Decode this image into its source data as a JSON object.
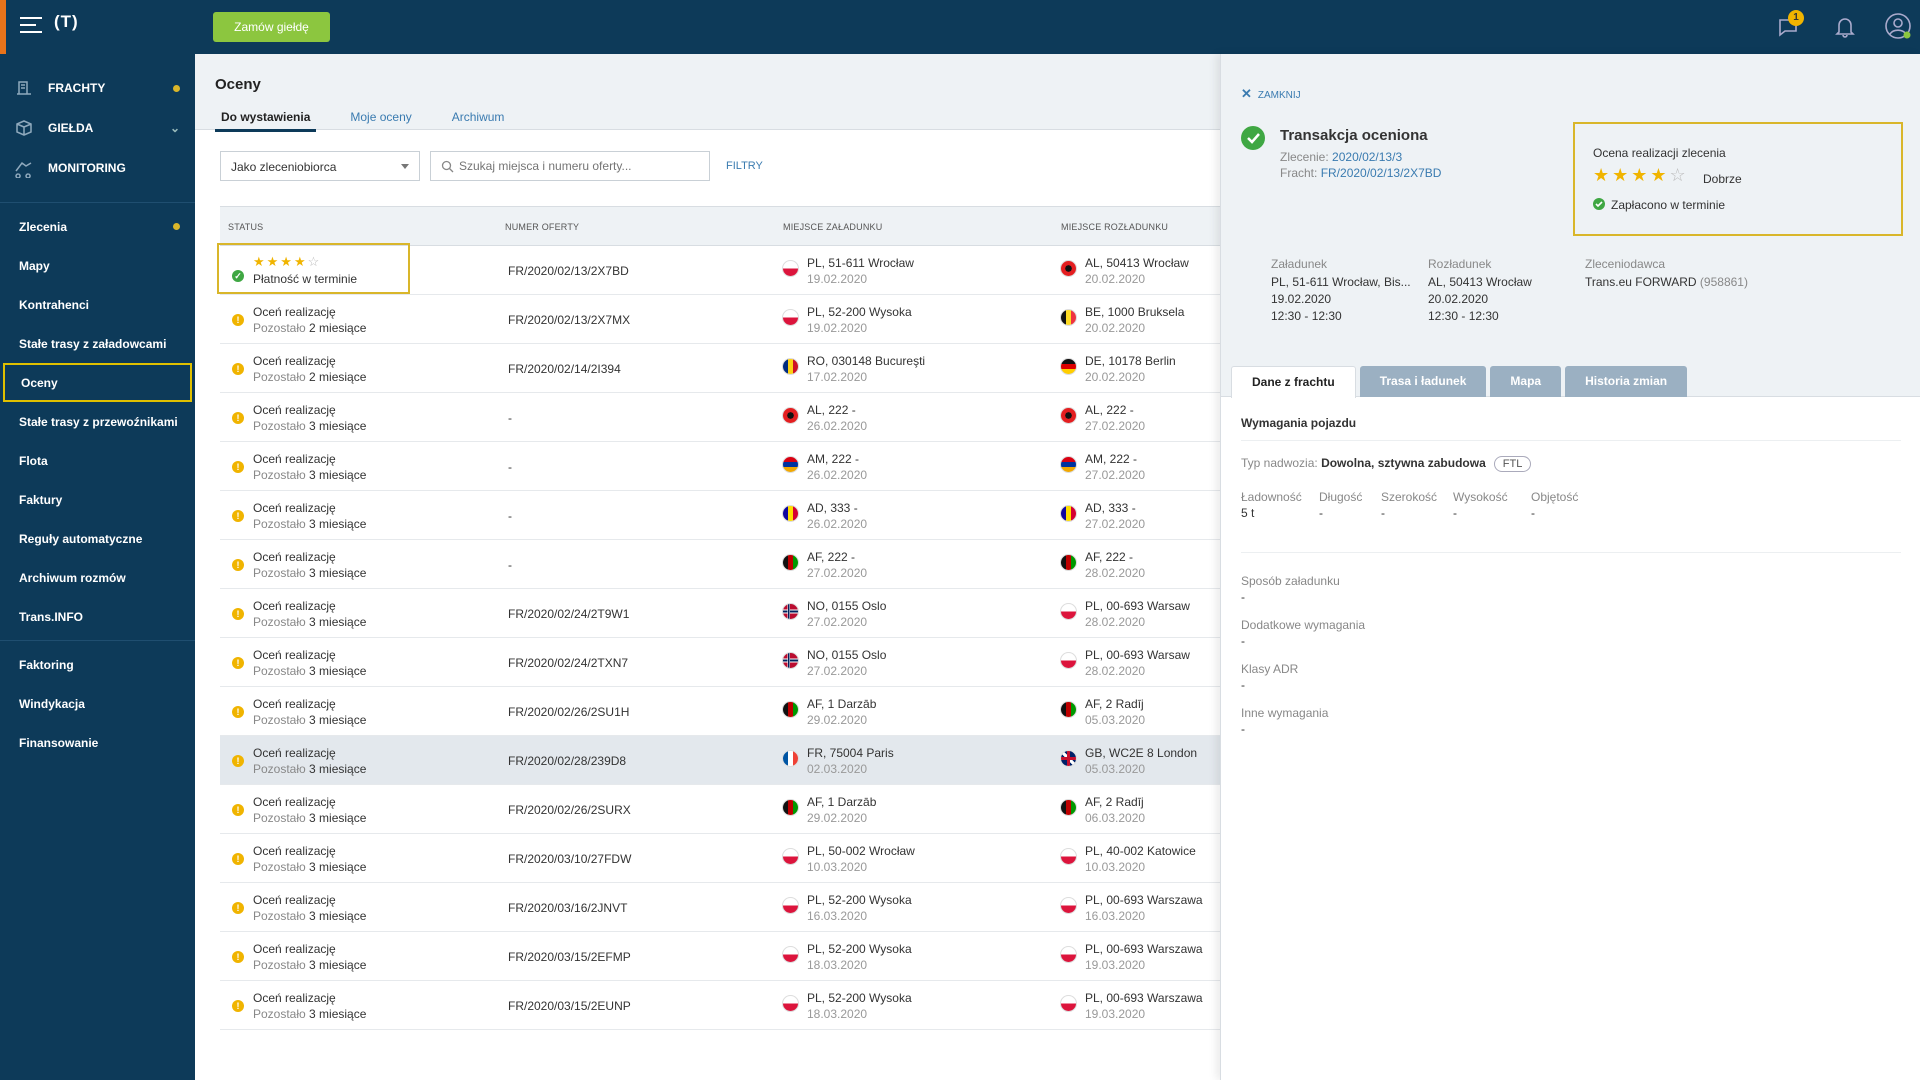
{
  "topbar": {
    "logo": "(T)",
    "order_button": "Zamów giełdę",
    "messages_badge": "1"
  },
  "sidebar": {
    "main_items": [
      {
        "label": "FRACHTY",
        "icon": "freight-icon",
        "dot": true
      },
      {
        "label": "GIEŁDA",
        "icon": "box-icon",
        "chevron": true
      },
      {
        "label": "MONITORING",
        "icon": "truck-icon"
      }
    ],
    "group1": [
      "Zlecenia",
      "Mapy",
      "Kontrahenci",
      "Stałe trasy z załadowcami",
      "Oceny",
      "Stałe trasy z przewoźnikami",
      "Flota",
      "Faktury",
      "Reguły automatyczne",
      "Archiwum rozmów",
      "Trans.INFO"
    ],
    "group2": [
      "Faktoring",
      "Windykacja",
      "Finansowanie"
    ],
    "active": "Oceny"
  },
  "main": {
    "title": "Oceny",
    "tabs": [
      "Do wystawienia",
      "Moje oceny",
      "Archiwum"
    ],
    "select_value": "Jako zleceniobiorca",
    "search_placeholder": "Szukaj miejsca i numeru oferty...",
    "filters_label": "FILTRY",
    "columns": [
      "STATUS",
      "NUMER OFERTY",
      "MIEJSCE ZAŁADUNKU",
      "MIEJSCE ROZŁADUNKU"
    ],
    "first_row": {
      "stars": 4,
      "status": "Płatność w terminie",
      "offer": "FR/2020/02/13/2X7BD",
      "load": "PL, 51-611 Wrocław",
      "load_date": "19.02.2020",
      "load_flag": "PL",
      "unload": "AL, 50413 Wrocław",
      "unload_date": "20.02.2020",
      "unload_flag": "AL"
    },
    "rows": [
      {
        "status": "Oceń realizację",
        "remain_pre": "Pozostało",
        "remain": "2 miesiące",
        "offer": "FR/2020/02/13/2X7MX",
        "load": "PL, 52-200 Wysoka",
        "load_date": "19.02.2020",
        "load_flag": "PL",
        "unload": "BE, 1000 Bruksela",
        "unload_date": "20.02.2020",
        "unload_flag": "BE"
      },
      {
        "status": "Oceń realizację",
        "remain_pre": "Pozostało",
        "remain": "2 miesiące",
        "offer": "FR/2020/02/14/2I394",
        "load": "RO, 030148 Bucureşti",
        "load_date": "17.02.2020",
        "load_flag": "RO",
        "unload": "DE, 10178 Berlin",
        "unload_date": "20.02.2020",
        "unload_flag": "DE"
      },
      {
        "status": "Oceń realizację",
        "remain_pre": "Pozostało",
        "remain": "3 miesiące",
        "offer": "-",
        "load": "AL, 222 -",
        "load_date": "26.02.2020",
        "load_flag": "AL",
        "unload": "AL, 222 -",
        "unload_date": "27.02.2020",
        "unload_flag": "AL"
      },
      {
        "status": "Oceń realizację",
        "remain_pre": "Pozostało",
        "remain": "3 miesiące",
        "offer": "-",
        "load": "AM, 222 -",
        "load_date": "26.02.2020",
        "load_flag": "AM",
        "unload": "AM, 222 -",
        "unload_date": "27.02.2020",
        "unload_flag": "AM"
      },
      {
        "status": "Oceń realizację",
        "remain_pre": "Pozostało",
        "remain": "3 miesiące",
        "offer": "-",
        "load": "AD, 333 -",
        "load_date": "26.02.2020",
        "load_flag": "AD",
        "unload": "AD, 333 -",
        "unload_date": "27.02.2020",
        "unload_flag": "AD"
      },
      {
        "status": "Oceń realizację",
        "remain_pre": "Pozostało",
        "remain": "3 miesiące",
        "offer": "-",
        "load": "AF, 222 -",
        "load_date": "27.02.2020",
        "load_flag": "AF",
        "unload": "AF, 222 -",
        "unload_date": "28.02.2020",
        "unload_flag": "AF"
      },
      {
        "status": "Oceń realizację",
        "remain_pre": "Pozostało",
        "remain": "3 miesiące",
        "offer": "FR/2020/02/24/2T9W1",
        "load": "NO, 0155 Oslo",
        "load_date": "27.02.2020",
        "load_flag": "NO",
        "unload": "PL, 00-693 Warsaw",
        "unload_date": "28.02.2020",
        "unload_flag": "PL"
      },
      {
        "status": "Oceń realizację",
        "remain_pre": "Pozostało",
        "remain": "3 miesiące",
        "offer": "FR/2020/02/24/2TXN7",
        "load": "NO, 0155 Oslo",
        "load_date": "27.02.2020",
        "load_flag": "NO",
        "unload": "PL, 00-693 Warsaw",
        "unload_date": "28.02.2020",
        "unload_flag": "PL"
      },
      {
        "status": "Oceń realizację",
        "remain_pre": "Pozostało",
        "remain": "3 miesiące",
        "offer": "FR/2020/02/26/2SU1H",
        "load": "AF, 1 Darzāb",
        "load_date": "29.02.2020",
        "load_flag": "AF",
        "unload": "AF, 2 Radīj",
        "unload_date": "05.03.2020",
        "unload_flag": "AF"
      },
      {
        "status": "Oceń realizację",
        "remain_pre": "Pozostało",
        "remain": "3 miesiące",
        "offer": "FR/2020/02/28/239D8",
        "load": "FR, 75004 Paris",
        "load_date": "02.03.2020",
        "load_flag": "FR",
        "unload": "GB, WC2E 8 London",
        "unload_date": "05.03.2020",
        "unload_flag": "GB",
        "selected": true
      },
      {
        "status": "Oceń realizację",
        "remain_pre": "Pozostało",
        "remain": "3 miesiące",
        "offer": "FR/2020/02/26/2SURX",
        "load": "AF, 1 Darzāb",
        "load_date": "29.02.2020",
        "load_flag": "AF",
        "unload": "AF, 2 Radīj",
        "unload_date": "06.03.2020",
        "unload_flag": "AF"
      },
      {
        "status": "Oceń realizację",
        "remain_pre": "Pozostało",
        "remain": "3 miesiące",
        "offer": "FR/2020/03/10/27FDW",
        "load": "PL, 50-002 Wrocław",
        "load_date": "10.03.2020",
        "load_flag": "PL",
        "unload": "PL, 40-002 Katowice",
        "unload_date": "10.03.2020",
        "unload_flag": "PL"
      },
      {
        "status": "Oceń realizację",
        "remain_pre": "Pozostało",
        "remain": "3 miesiące",
        "offer": "FR/2020/03/16/2JNVT",
        "load": "PL, 52-200 Wysoka",
        "load_date": "16.03.2020",
        "load_flag": "PL",
        "unload": "PL, 00-693 Warszawa",
        "unload_date": "16.03.2020",
        "unload_flag": "PL"
      },
      {
        "status": "Oceń realizację",
        "remain_pre": "Pozostało",
        "remain": "3 miesiące",
        "offer": "FR/2020/03/15/2EFMP",
        "load": "PL, 52-200 Wysoka",
        "load_date": "18.03.2020",
        "load_flag": "PL",
        "unload": "PL, 00-693 Warszawa",
        "unload_date": "19.03.2020",
        "unload_flag": "PL"
      },
      {
        "status": "Oceń realizację",
        "remain_pre": "Pozostało",
        "remain": "3 miesiące",
        "offer": "FR/2020/03/15/2EUNP",
        "load": "PL, 52-200 Wysoka",
        "load_date": "18.03.2020",
        "load_flag": "PL",
        "unload": "PL, 00-693 Warszawa",
        "unload_date": "19.03.2020",
        "unload_flag": "PL"
      }
    ]
  },
  "panel": {
    "close": "ZAMKNIJ",
    "title": "Transakcja oceniona",
    "order_label": "Zlecenie:",
    "order_value": "2020/02/13/3",
    "freight_label": "Fracht:",
    "freight_value": "FR/2020/02/13/2X7BD",
    "rating_title": "Ocena realizacji zlecenia",
    "rating_stars": 4,
    "rating_word": "Dobrze",
    "paid_label": "Zapłacono w terminie",
    "load_h": "Załadunek",
    "load_v1": "PL, 51-611 Wrocław, Bis...",
    "load_v2": "19.02.2020",
    "load_v3": "12:30 - 12:30",
    "unload_h": "Rozładunek",
    "unload_v1": "AL, 50413 Wrocław",
    "unload_v2": "20.02.2020",
    "unload_v3": "12:30 - 12:30",
    "client_h": "Zleceniodawca",
    "client_v": "Trans.eu FORWARD",
    "client_id": "(958861)",
    "tabs": [
      "Dane z frachtu",
      "Trasa i ładunek",
      "Mapa",
      "Historia zmian"
    ],
    "section": "Wymagania pojazdu",
    "body_label": "Typ nadwozia:",
    "body_value": "Dowolna, sztywna zabudowa",
    "body_badge": "FTL",
    "dims": [
      {
        "label": "Ładowność",
        "value": "5 t"
      },
      {
        "label": "Długość",
        "value": "-"
      },
      {
        "label": "Szerokość",
        "value": "-"
      },
      {
        "label": "Wysokość",
        "value": "-"
      },
      {
        "label": "Objętość",
        "value": "-"
      }
    ],
    "fields": [
      {
        "label": "Sposób załadunku",
        "value": "-"
      },
      {
        "label": "Dodatkowe wymagania",
        "value": "-"
      },
      {
        "label": "Klasy ADR",
        "value": "-"
      },
      {
        "label": "Inne wymagania",
        "value": "-"
      }
    ]
  },
  "colors": {
    "nav": "#0d3a59",
    "accent": "#8cc63f",
    "highlight": "#d9b62a",
    "warn": "#f0b400",
    "ok": "#3fa743"
  }
}
